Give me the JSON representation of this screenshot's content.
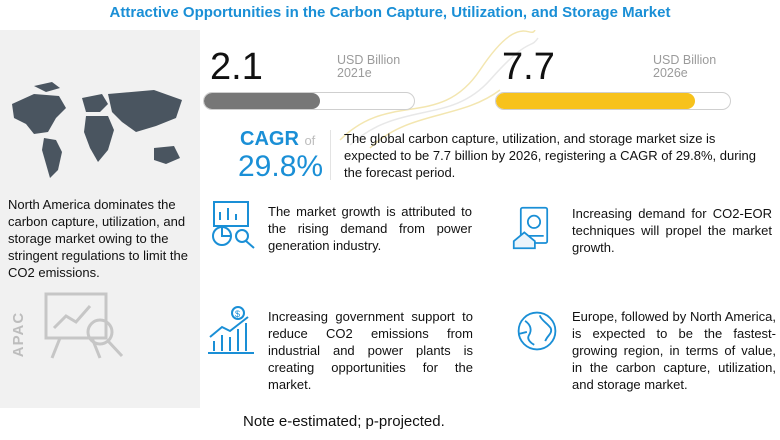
{
  "title": "Attractive Opportunities in the Carbon Capture, Utilization, and Storage Market",
  "market": {
    "value_2021": "2.1",
    "unit_2021_line1": "USD Billion",
    "unit_2021_line2": "2021e",
    "value_2026": "7.7",
    "unit_2026_line1": "USD Billion",
    "unit_2026_line2": "2026e",
    "bar_2021_fill_fraction": 0.55,
    "bar_2026_fill_fraction": 0.85,
    "bar_2021_color": "#777777",
    "bar_2026_color": "#f7c21c"
  },
  "cagr": {
    "label": "CAGR",
    "of": "of",
    "value": "29.8%",
    "description": "The global carbon capture, utilization, and storage market size is expected to be 7.7 billion by 2026, registering a CAGR of 29.8%, during the forecast period."
  },
  "left_panel": {
    "region_label": "APAC",
    "text": "North America dominates the carbon capture, utilization, and storage market owing to the stringent regulations to limit the CO2 emissions."
  },
  "cards": [
    {
      "icon": "analytics-icon",
      "text": "The market growth is attributed to the rising demand from power generation industry."
    },
    {
      "icon": "money-icon",
      "text": "Increasing demand for CO2-EOR techniques will propel the market growth."
    },
    {
      "icon": "growth-chart-icon",
      "text": "Increasing government support to reduce CO2 emissions from industrial and power plants is creating opportunities for the market."
    },
    {
      "icon": "globe-icon",
      "text": "Europe, followed by North America, is expected to be the fastest-growing region, in terms of value, in the carbon capture, utilization, and storage market."
    }
  ],
  "note": "Note e-estimated; p-projected.",
  "colors": {
    "accent": "#1a8fd6",
    "yellow": "#f7c21c",
    "gray_bar": "#777777",
    "map": "#4a5560"
  }
}
